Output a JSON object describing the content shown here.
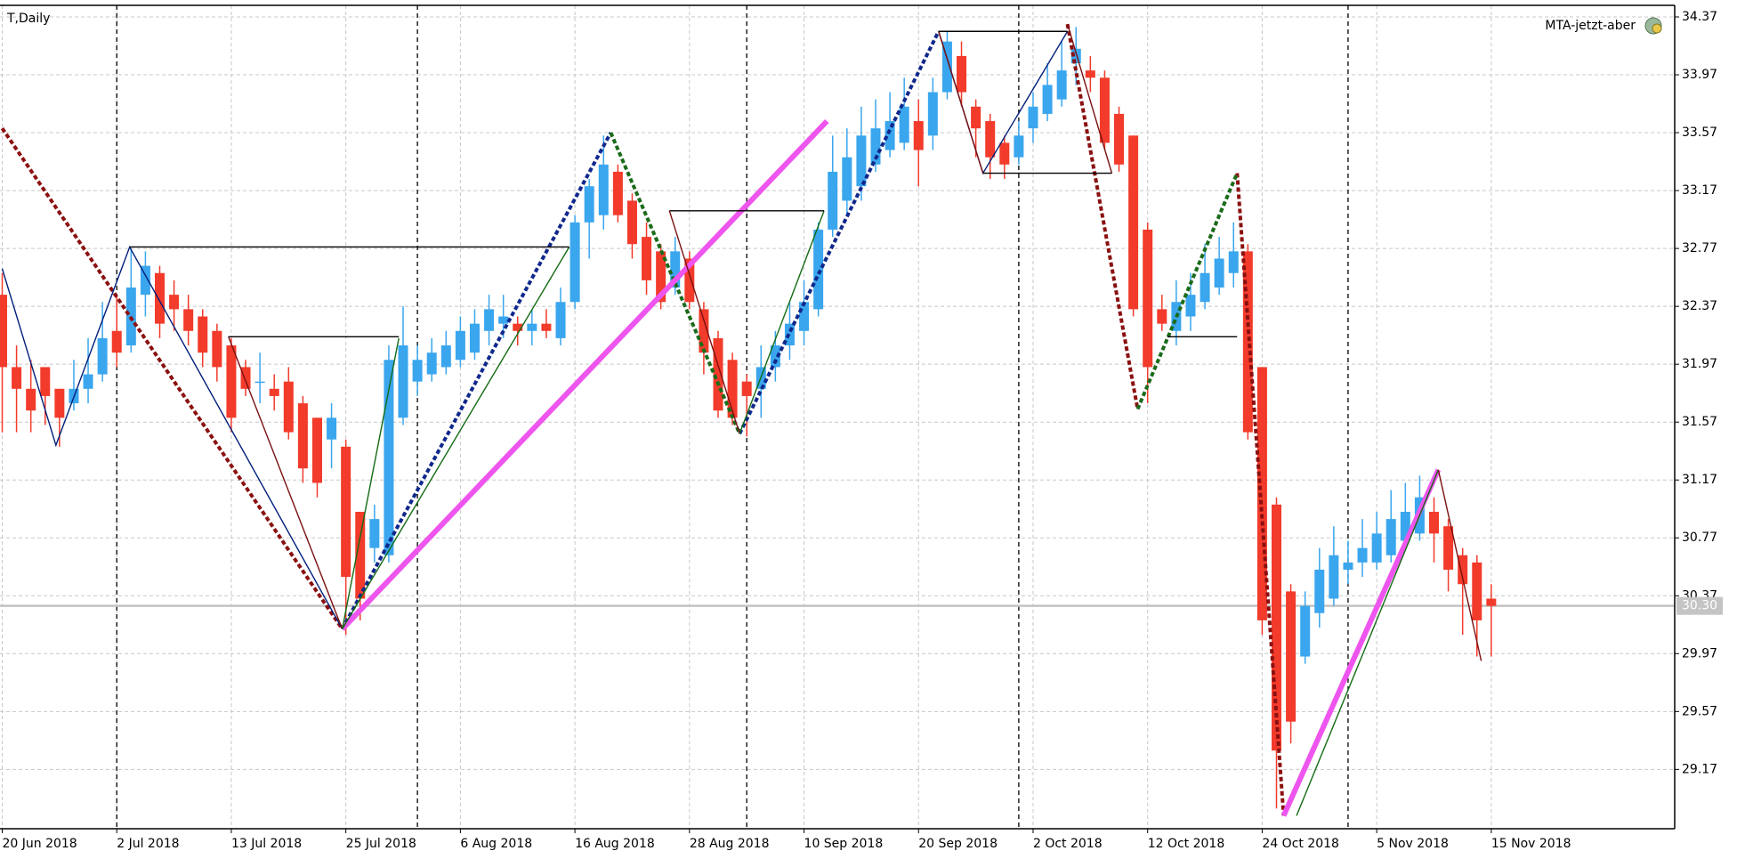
{
  "chart_data": {
    "type": "candlestick",
    "title": "T,Daily",
    "indicator_label": "MTA-jetzt-aber",
    "categories": [
      "20 Jun 2018",
      null,
      null,
      null,
      null,
      null,
      null,
      null,
      "2 Jul 2018",
      null,
      null,
      null,
      null,
      null,
      null,
      null,
      "13 Jul 2018",
      null,
      null,
      null,
      null,
      null,
      null,
      null,
      "25 Jul 2018",
      null,
      null,
      null,
      null,
      null,
      null,
      null,
      "6 Aug 2018",
      null,
      null,
      null,
      null,
      null,
      null,
      null,
      "16 Aug 2018",
      null,
      null,
      null,
      null,
      null,
      null,
      null,
      "28 Aug 2018",
      null,
      null,
      null,
      null,
      null,
      null,
      null,
      "10 Sep 2018",
      null,
      null,
      null,
      null,
      null,
      null,
      null,
      "20 Sep 2018",
      null,
      null,
      null,
      null,
      null,
      null,
      null,
      "2 Oct 2018",
      null,
      null,
      null,
      null,
      null,
      null,
      null,
      "12 Oct 2018",
      null,
      null,
      null,
      null,
      null,
      null,
      null,
      "24 Oct 2018",
      null,
      null,
      null,
      null,
      null,
      null,
      null,
      "5 Nov 2018",
      null,
      null,
      null,
      null,
      null,
      null,
      null,
      "15 Nov 2018"
    ],
    "open": [
      32.45,
      31.95,
      31.8,
      31.95,
      31.8,
      31.7,
      31.8,
      31.9,
      32.2,
      32.1,
      32.45,
      32.6,
      32.45,
      32.35,
      32.3,
      32.2,
      32.1,
      31.95,
      31.85,
      31.8,
      31.85,
      31.7,
      31.6,
      31.45,
      31.4,
      30.95,
      30.7,
      30.65,
      31.6,
      31.85,
      31.9,
      31.95,
      32.0,
      32.05,
      32.2,
      32.25,
      32.25,
      32.2,
      32.25,
      32.15,
      32.4,
      32.95,
      33.0,
      33.3,
      33.1,
      32.85,
      32.75,
      32.5,
      32.7,
      32.35,
      32.15,
      32.0,
      31.85,
      31.8,
      31.95,
      32.1,
      32.2,
      32.35,
      32.9,
      33.1,
      33.2,
      33.35,
      33.45,
      33.5,
      33.65,
      33.55,
      33.85,
      34.1,
      33.75,
      33.65,
      33.5,
      33.4,
      33.6,
      33.7,
      33.8,
      34.05,
      34.0,
      33.95,
      33.7,
      33.55,
      32.9,
      32.35,
      32.2,
      32.3,
      32.4,
      32.5,
      32.6,
      32.75,
      31.95,
      31.0,
      30.4,
      29.95,
      30.25,
      30.35,
      30.55,
      30.6,
      30.6,
      30.65,
      30.75,
      30.8,
      30.95,
      30.85,
      30.65,
      30.6,
      30.35
    ],
    "high": [
      32.6,
      32.1,
      32.0,
      31.95,
      31.8,
      32.0,
      32.15,
      32.4,
      32.45,
      32.77,
      32.75,
      32.65,
      32.55,
      32.45,
      32.35,
      32.25,
      32.15,
      32.0,
      32.05,
      31.9,
      31.95,
      31.75,
      31.6,
      31.7,
      31.45,
      30.95,
      31.0,
      32.1,
      32.37,
      32.1,
      32.15,
      32.2,
      32.3,
      32.35,
      32.45,
      32.45,
      32.3,
      32.35,
      32.35,
      32.5,
      33.0,
      33.25,
      33.55,
      33.35,
      33.15,
      32.95,
      32.8,
      32.85,
      32.75,
      32.4,
      32.2,
      32.05,
      31.9,
      32.1,
      32.2,
      32.4,
      32.55,
      32.95,
      33.55,
      33.6,
      33.75,
      33.8,
      33.85,
      33.95,
      33.8,
      33.95,
      34.27,
      34.2,
      33.8,
      33.7,
      33.55,
      33.65,
      33.85,
      34.05,
      34.2,
      34.3,
      34.1,
      34.0,
      33.75,
      33.55,
      32.95,
      32.45,
      32.55,
      32.6,
      32.8,
      32.85,
      32.95,
      32.8,
      31.95,
      31.05,
      30.45,
      30.4,
      30.7,
      30.85,
      30.75,
      30.9,
      30.95,
      31.1,
      31.15,
      31.2,
      31.05,
      30.9,
      30.7,
      30.65,
      30.45
    ],
    "low": [
      31.5,
      31.5,
      31.5,
      31.55,
      31.4,
      31.65,
      31.7,
      31.85,
      31.95,
      32.05,
      32.3,
      32.15,
      32.2,
      32.1,
      31.95,
      31.85,
      31.5,
      31.75,
      31.7,
      31.65,
      31.45,
      31.15,
      31.05,
      31.25,
      30.1,
      30.2,
      30.6,
      30.6,
      31.55,
      31.75,
      31.85,
      31.9,
      31.95,
      32.0,
      32.1,
      32.15,
      32.1,
      32.1,
      32.15,
      32.1,
      32.35,
      32.7,
      32.9,
      32.95,
      32.7,
      32.45,
      32.35,
      32.45,
      32.35,
      31.9,
      31.6,
      31.55,
      31.47,
      31.6,
      31.85,
      32.0,
      32.1,
      32.3,
      32.85,
      33.0,
      33.1,
      33.3,
      33.4,
      33.45,
      33.2,
      33.45,
      33.8,
      33.75,
      33.4,
      33.25,
      33.25,
      33.35,
      33.5,
      33.65,
      33.75,
      33.9,
      33.85,
      33.45,
      33.3,
      32.3,
      31.7,
      32.2,
      32.1,
      32.2,
      32.35,
      32.45,
      32.5,
      31.45,
      30.1,
      28.9,
      29.35,
      29.9,
      30.15,
      30.3,
      30.45,
      30.5,
      30.55,
      30.6,
      30.7,
      30.75,
      30.6,
      30.4,
      30.1,
      29.95,
      29.95
    ],
    "close": [
      31.95,
      31.8,
      31.65,
      31.75,
      31.6,
      31.8,
      31.9,
      32.15,
      32.05,
      32.5,
      32.65,
      32.25,
      32.35,
      32.2,
      32.05,
      31.95,
      31.6,
      31.8,
      31.85,
      31.75,
      31.5,
      31.25,
      31.15,
      31.6,
      30.5,
      30.35,
      30.9,
      32.0,
      32.1,
      32.0,
      32.05,
      32.1,
      32.2,
      32.25,
      32.35,
      32.3,
      32.2,
      32.25,
      32.2,
      32.4,
      32.95,
      33.2,
      33.35,
      33.0,
      32.8,
      32.55,
      32.4,
      32.75,
      32.4,
      32.05,
      31.65,
      31.6,
      31.75,
      31.95,
      32.1,
      32.25,
      32.4,
      32.9,
      33.3,
      33.4,
      33.55,
      33.6,
      33.65,
      33.75,
      33.45,
      33.85,
      34.2,
      33.85,
      33.6,
      33.4,
      33.35,
      33.55,
      33.75,
      33.9,
      34.0,
      34.15,
      33.95,
      33.5,
      33.35,
      32.35,
      31.95,
      32.25,
      32.4,
      32.45,
      32.6,
      32.7,
      32.75,
      31.5,
      30.2,
      29.3,
      29.5,
      30.3,
      30.55,
      30.65,
      30.6,
      30.7,
      30.8,
      30.9,
      30.95,
      31.05,
      30.8,
      30.55,
      30.45,
      30.2,
      30.3
    ],
    "up_color": "#3aa6ee",
    "down_color": "#f23b2b",
    "ylim": [
      28.76,
      34.45
    ],
    "yticks": [
      34.37,
      33.97,
      33.57,
      33.17,
      32.77,
      32.37,
      31.97,
      31.57,
      31.17,
      30.77,
      30.37,
      29.97,
      29.57,
      29.17
    ],
    "current_price": {
      "value": 30.3,
      "label": "30.30"
    },
    "grid": true,
    "period_separators": [
      8,
      29,
      52,
      71,
      94
    ],
    "overlays": [
      {
        "color": "#8b1010",
        "width": 4,
        "dash": "5,3",
        "x": [
          0,
          23.75
        ],
        "y": [
          33.6,
          30.14
        ]
      },
      {
        "color": "#8b1010",
        "width": 4,
        "dash": "5,3",
        "x": [
          74.4,
          79.3
        ],
        "y": [
          34.32,
          31.66
        ]
      },
      {
        "color": "#8b1010",
        "width": 4,
        "dash": "5,3",
        "x": [
          86.25,
          89.5
        ],
        "y": [
          33.29,
          28.85
        ]
      },
      {
        "color": "#10288c",
        "width": 4,
        "dash": "5,3",
        "x": [
          23.75,
          42.5
        ],
        "y": [
          30.14,
          33.57
        ]
      },
      {
        "color": "#10288c",
        "width": 4,
        "dash": "5,3",
        "x": [
          51.5,
          65.4
        ],
        "y": [
          31.49,
          34.27
        ]
      },
      {
        "color": "#1a6b1a",
        "width": 4,
        "dash": "5,3",
        "x": [
          42.5,
          51.5
        ],
        "y": [
          33.57,
          31.49
        ]
      },
      {
        "color": "#1a6b1a",
        "width": 4,
        "dash": "5,3",
        "x": [
          79.3,
          86.25
        ],
        "y": [
          31.66,
          33.29
        ]
      },
      {
        "color": "#ee55ee",
        "width": 6,
        "dash": "none",
        "x": [
          23.75,
          57.6
        ],
        "y": [
          30.14,
          33.65
        ]
      },
      {
        "color": "#ee55ee",
        "width": 6,
        "dash": "none",
        "x": [
          89.5,
          100.3
        ],
        "y": [
          28.85,
          31.24
        ]
      },
      {
        "color": "#001f7a",
        "width": 1.4,
        "dash": "none",
        "x": [
          0,
          3.75,
          8.9,
          23.75
        ],
        "y": [
          32.63,
          31.41,
          32.78,
          30.14
        ]
      },
      {
        "color": "#7a1010",
        "width": 1.4,
        "dash": "none",
        "x": [
          15.8,
          23.75
        ],
        "y": [
          32.16,
          30.14
        ]
      },
      {
        "color": "#136b13",
        "width": 1.4,
        "dash": "none",
        "x": [
          23.75,
          27.7
        ],
        "y": [
          30.14,
          32.15
        ]
      },
      {
        "color": "#136b13",
        "width": 1.4,
        "dash": "none",
        "x": [
          23.75,
          39.6
        ],
        "y": [
          30.14,
          32.78
        ]
      },
      {
        "color": "#7a1010",
        "width": 1.4,
        "dash": "none",
        "x": [
          46.6,
          51.5
        ],
        "y": [
          33.03,
          31.49
        ]
      },
      {
        "color": "#136b13",
        "width": 1.4,
        "dash": "none",
        "x": [
          51.5,
          57.4
        ],
        "y": [
          31.49,
          33.03
        ]
      },
      {
        "color": "#001f7a",
        "width": 1.4,
        "dash": "none",
        "x": [
          65.4,
          68.5,
          74.4
        ],
        "y": [
          34.27,
          33.29,
          34.27
        ]
      },
      {
        "color": "#7a1010",
        "width": 1.4,
        "dash": "none",
        "x": [
          65.4,
          68.5
        ],
        "y": [
          34.27,
          33.29
        ]
      },
      {
        "color": "#7a1010",
        "width": 1.4,
        "dash": "none",
        "x": [
          74.4,
          77.5
        ],
        "y": [
          34.32,
          33.29
        ]
      },
      {
        "color": "#136b13",
        "width": 1.4,
        "dash": "none",
        "x": [
          90.4,
          100.3
        ],
        "y": [
          28.85,
          31.24
        ]
      },
      {
        "color": "#7a1010",
        "width": 1.4,
        "dash": "none",
        "x": [
          100.3,
          103.3
        ],
        "y": [
          31.24,
          29.92
        ]
      },
      {
        "color": "#000000",
        "width": 1.4,
        "dash": "none",
        "x": [
          8.9,
          39.6
        ],
        "y": [
          32.78,
          32.78
        ]
      },
      {
        "color": "#000000",
        "width": 1.4,
        "dash": "none",
        "x": [
          15.8,
          27.7
        ],
        "y": [
          32.16,
          32.16
        ]
      },
      {
        "color": "#000000",
        "width": 1.4,
        "dash": "none",
        "x": [
          46.6,
          57.4
        ],
        "y": [
          33.03,
          33.03
        ]
      },
      {
        "color": "#000000",
        "width": 1.4,
        "dash": "none",
        "x": [
          65.4,
          74.4
        ],
        "y": [
          34.27,
          34.27
        ]
      },
      {
        "color": "#000000",
        "width": 1.4,
        "dash": "none",
        "x": [
          68.5,
          77.5
        ],
        "y": [
          33.29,
          33.29
        ]
      },
      {
        "color": "#000000",
        "width": 1.4,
        "dash": "none",
        "x": [
          81.4,
          86.25
        ],
        "y": [
          32.16,
          32.16
        ]
      }
    ]
  }
}
